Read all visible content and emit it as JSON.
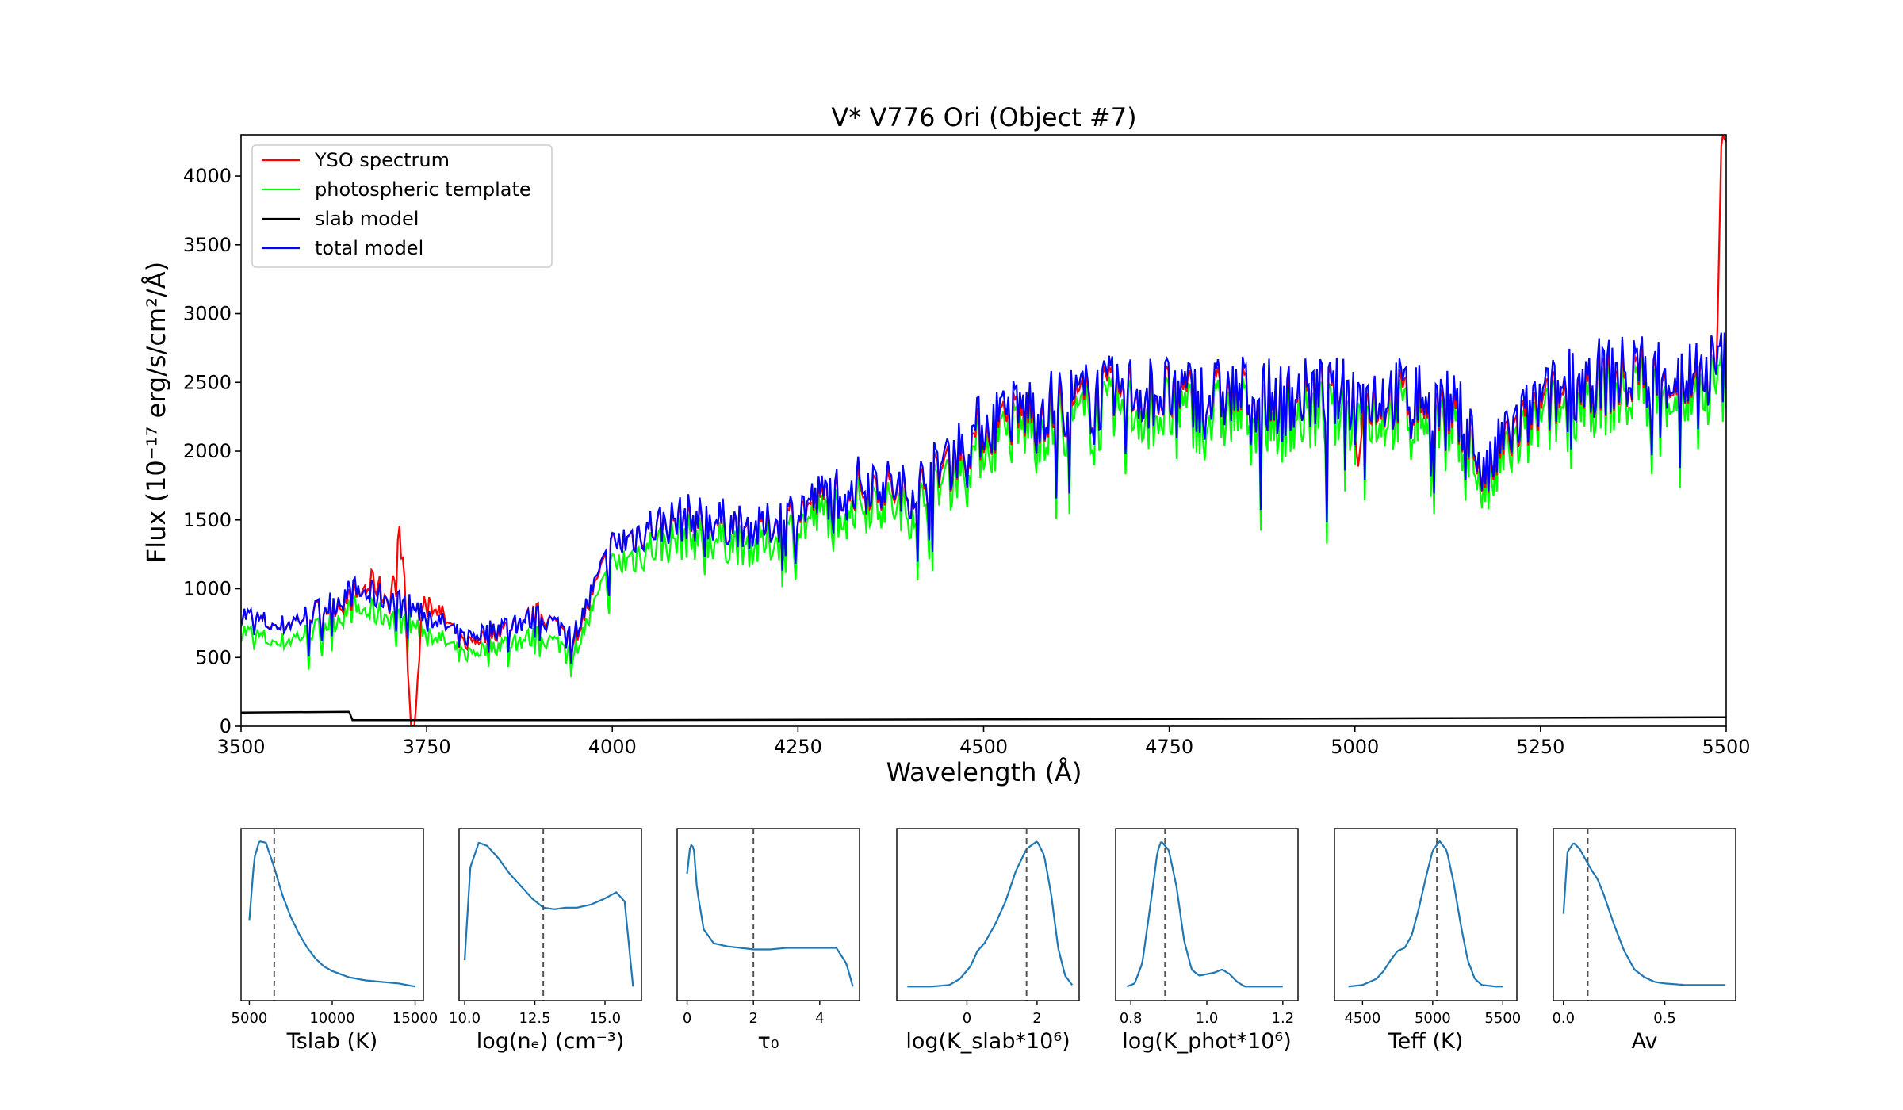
{
  "colors": {
    "yso": "#ff0000",
    "template": "#00ff00",
    "slab": "#000000",
    "total": "#0000ff",
    "posterior": "#1f77b4",
    "marker": "#555555"
  },
  "chart_data": [
    {
      "type": "line",
      "title": "V* V776 Ori (Object #7)",
      "xlabel": "Wavelength (Å)",
      "ylabel": "Flux (10⁻¹⁷ erg/s/cm²/Å)",
      "xlim": [
        3500,
        5500
      ],
      "ylim": [
        0,
        4300
      ],
      "xticks": [
        3500,
        3750,
        4000,
        4250,
        4500,
        4750,
        5000,
        5250,
        5500
      ],
      "yticks": [
        0,
        500,
        1000,
        1500,
        2000,
        2500,
        3000,
        3500,
        4000
      ],
      "legend_position": "top-left",
      "grid": false,
      "series": [
        {
          "name": "YSO spectrum",
          "color": "#ff0000",
          "x": [
            3500,
            3550,
            3600,
            3650,
            3680,
            3700,
            3715,
            3722,
            3728,
            3734,
            3745,
            3760,
            3800,
            3850,
            3900,
            3950,
            4000,
            4050,
            4100,
            4150,
            4200,
            4250,
            4300,
            4350,
            4400,
            4450,
            4500,
            4550,
            4600,
            4650,
            4700,
            4750,
            4800,
            4850,
            4900,
            4950,
            5000,
            5005,
            5010,
            5050,
            5100,
            5150,
            5175,
            5200,
            5250,
            5300,
            5350,
            5400,
            5450,
            5480,
            5487,
            5490,
            5493,
            5495,
            5500
          ],
          "values": [
            820,
            720,
            830,
            930,
            1050,
            900,
            1400,
            900,
            0,
            0,
            950,
            880,
            600,
            700,
            820,
            650,
            1300,
            1450,
            1500,
            1480,
            1420,
            1550,
            1700,
            1750,
            1680,
            1900,
            2150,
            2250,
            2300,
            2380,
            2420,
            2400,
            2380,
            2400,
            2350,
            2400,
            2400,
            1750,
            2350,
            2380,
            2350,
            2200,
            1750,
            2050,
            2300,
            2480,
            2500,
            2550,
            2500,
            2580,
            2620,
            3300,
            4200,
            4300,
            4250
          ]
        },
        {
          "name": "photospheric template",
          "color": "#00ff00",
          "x": [
            3500,
            3550,
            3600,
            3650,
            3700,
            3750,
            3800,
            3850,
            3900,
            3950,
            4000,
            4050,
            4100,
            4150,
            4200,
            4250,
            4300,
            4350,
            4400,
            4450,
            4500,
            4550,
            4600,
            4650,
            4700,
            4750,
            4800,
            4850,
            4900,
            4950,
            5000,
            5050,
            5100,
            5150,
            5175,
            5200,
            5250,
            5300,
            5350,
            5400,
            5450,
            5500
          ],
          "values": [
            700,
            600,
            700,
            850,
            800,
            700,
            520,
            600,
            650,
            560,
            1150,
            1300,
            1380,
            1350,
            1300,
            1450,
            1580,
            1650,
            1550,
            1800,
            2050,
            2150,
            2200,
            2250,
            2300,
            2280,
            2250,
            2280,
            2230,
            2260,
            2250,
            2270,
            2250,
            2100,
            1650,
            1950,
            2200,
            2380,
            2400,
            2450,
            2400,
            2480
          ]
        },
        {
          "name": "slab model",
          "color": "#000000",
          "x": [
            3500,
            3645,
            3646,
            3650,
            3700,
            4000,
            4500,
            5000,
            5500
          ],
          "values": [
            100,
            105,
            100,
            45,
            45,
            45,
            50,
            57,
            65
          ]
        },
        {
          "name": "total model",
          "color": "#0000ff",
          "x": [
            3500,
            3550,
            3600,
            3650,
            3700,
            3750,
            3800,
            3850,
            3900,
            3950,
            4000,
            4050,
            4100,
            4150,
            4200,
            4250,
            4300,
            4350,
            4400,
            4450,
            4500,
            4550,
            4600,
            4650,
            4700,
            4750,
            4800,
            4850,
            4900,
            4950,
            5000,
            5050,
            5100,
            5150,
            5175,
            5200,
            5250,
            5300,
            5350,
            5400,
            5450,
            5500
          ],
          "values": [
            820,
            720,
            830,
            980,
            930,
            820,
            640,
            730,
            790,
            690,
            1300,
            1450,
            1520,
            1490,
            1430,
            1580,
            1720,
            1800,
            1700,
            1950,
            2200,
            2300,
            2350,
            2400,
            2450,
            2430,
            2400,
            2430,
            2380,
            2420,
            2400,
            2420,
            2400,
            2250,
            1780,
            2100,
            2350,
            2520,
            2550,
            2580,
            2540,
            2620
          ]
        }
      ]
    },
    {
      "type": "line",
      "xlabel": "Tslab (K)",
      "xlim": [
        4500,
        15500
      ],
      "xticks": [
        5000,
        10000,
        15000
      ],
      "xticklabels": [
        "5000",
        "10000",
        "15000"
      ],
      "marker": 6500,
      "series": [
        {
          "x": [
            5000,
            5300,
            5600,
            6000,
            6500,
            7000,
            7500,
            8000,
            8500,
            9000,
            9500,
            10000,
            11000,
            12000,
            13000,
            14000,
            15000
          ],
          "values": [
            0.48,
            0.88,
            0.99,
            0.98,
            0.82,
            0.64,
            0.5,
            0.39,
            0.3,
            0.23,
            0.18,
            0.15,
            0.11,
            0.09,
            0.08,
            0.07,
            0.05
          ]
        }
      ]
    },
    {
      "type": "line",
      "xlabel": "log(nₑ) (cm⁻³)",
      "xlim": [
        9.8,
        16.3
      ],
      "xticks": [
        10.0,
        12.5,
        15.0
      ],
      "xticklabels": [
        "10.0",
        "12.5",
        "15.0"
      ],
      "marker": 12.8,
      "series": [
        {
          "x": [
            10.0,
            10.2,
            10.5,
            10.8,
            11.2,
            11.6,
            12.0,
            12.4,
            12.8,
            13.2,
            13.6,
            14.0,
            14.5,
            15.0,
            15.4,
            15.7,
            16.0
          ],
          "values": [
            0.22,
            0.82,
            0.98,
            0.96,
            0.88,
            0.78,
            0.7,
            0.62,
            0.56,
            0.55,
            0.56,
            0.56,
            0.58,
            0.62,
            0.66,
            0.6,
            0.05
          ]
        }
      ]
    },
    {
      "type": "line",
      "xlabel": "τ₀",
      "xlim": [
        -0.3,
        5.2
      ],
      "xticks": [
        0,
        2,
        4
      ],
      "xticklabels": [
        "0",
        "2",
        "4"
      ],
      "marker": 2.0,
      "series": [
        {
          "x": [
            0.0,
            0.1,
            0.2,
            0.3,
            0.5,
            0.8,
            1.2,
            1.6,
            2.0,
            2.5,
            3.0,
            3.5,
            4.0,
            4.5,
            4.8,
            5.0
          ],
          "values": [
            0.78,
            0.97,
            0.95,
            0.68,
            0.42,
            0.33,
            0.31,
            0.3,
            0.29,
            0.29,
            0.3,
            0.3,
            0.3,
            0.3,
            0.2,
            0.05
          ]
        }
      ]
    },
    {
      "type": "line",
      "xlabel": "log(K_slab*10⁶)",
      "xlim": [
        -2.0,
        3.2
      ],
      "xticks": [
        0,
        2
      ],
      "xticklabels": [
        "0",
        "2"
      ],
      "marker": 1.7,
      "series": [
        {
          "x": [
            -1.7,
            -1.0,
            -0.5,
            -0.2,
            0.1,
            0.3,
            0.5,
            0.8,
            1.1,
            1.4,
            1.7,
            2.0,
            2.2,
            2.4,
            2.6,
            2.8,
            3.0
          ],
          "values": [
            0.05,
            0.05,
            0.06,
            0.1,
            0.18,
            0.28,
            0.33,
            0.45,
            0.6,
            0.8,
            0.94,
            0.99,
            0.9,
            0.65,
            0.3,
            0.12,
            0.06
          ]
        }
      ]
    },
    {
      "type": "line",
      "xlabel": "log(K_phot*10⁶)",
      "xlim": [
        0.76,
        1.24
      ],
      "xticks": [
        0.8,
        1.0,
        1.2
      ],
      "xticklabels": [
        "0.8",
        "1.0",
        "1.2"
      ],
      "marker": 0.89,
      "series": [
        {
          "x": [
            0.79,
            0.81,
            0.83,
            0.85,
            0.87,
            0.88,
            0.9,
            0.92,
            0.94,
            0.96,
            0.98,
            1.0,
            1.02,
            1.04,
            1.06,
            1.08,
            1.1,
            1.15,
            1.2
          ],
          "values": [
            0.05,
            0.07,
            0.2,
            0.55,
            0.92,
            0.99,
            0.93,
            0.7,
            0.35,
            0.16,
            0.12,
            0.13,
            0.14,
            0.16,
            0.13,
            0.08,
            0.05,
            0.05,
            0.05
          ]
        }
      ]
    },
    {
      "type": "line",
      "xlabel": "Teff (K)",
      "xlim": [
        4300,
        5600
      ],
      "xticks": [
        4500,
        5000,
        5500
      ],
      "xticklabels": [
        "4500",
        "5000",
        "5500"
      ],
      "marker": 5030,
      "series": [
        {
          "x": [
            4400,
            4500,
            4600,
            4650,
            4700,
            4750,
            4800,
            4850,
            4900,
            4950,
            5000,
            5050,
            5100,
            5150,
            5200,
            5250,
            5300,
            5350,
            5450,
            5500
          ],
          "values": [
            0.05,
            0.06,
            0.1,
            0.15,
            0.22,
            0.28,
            0.3,
            0.38,
            0.55,
            0.75,
            0.93,
            0.99,
            0.93,
            0.72,
            0.45,
            0.22,
            0.1,
            0.06,
            0.05,
            0.05
          ]
        }
      ]
    },
    {
      "type": "line",
      "xlabel": "Av",
      "xlim": [
        -0.05,
        0.85
      ],
      "xticks": [
        0.0,
        0.5
      ],
      "xticklabels": [
        "0.0",
        "0.5"
      ],
      "marker": 0.12,
      "series": [
        {
          "x": [
            0.0,
            0.02,
            0.05,
            0.08,
            0.11,
            0.14,
            0.17,
            0.2,
            0.25,
            0.3,
            0.35,
            0.4,
            0.45,
            0.5,
            0.6,
            0.7,
            0.8
          ],
          "values": [
            0.52,
            0.92,
            0.98,
            0.94,
            0.87,
            0.8,
            0.74,
            0.64,
            0.45,
            0.28,
            0.16,
            0.11,
            0.08,
            0.07,
            0.06,
            0.06,
            0.06
          ]
        }
      ]
    }
  ]
}
